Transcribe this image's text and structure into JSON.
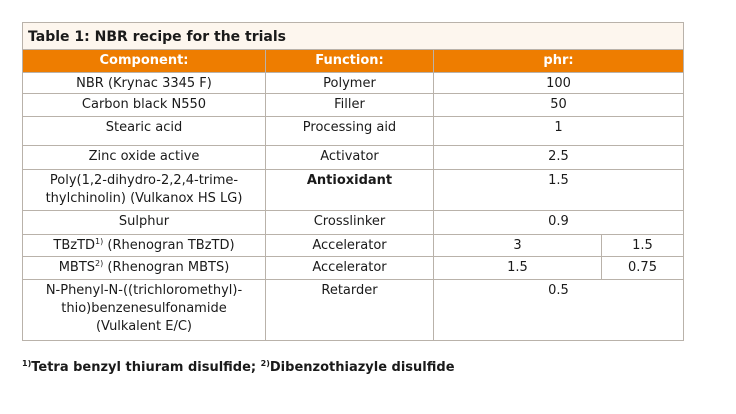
{
  "table": {
    "title": "Table 1: NBR recipe for the trials",
    "headers": [
      "Component:",
      "Function:",
      "phr:"
    ],
    "rows": [
      {
        "component": [
          "NBR (Krynac 3345 F)"
        ],
        "function": "Polymer",
        "phr": [
          100
        ]
      },
      {
        "component": [
          "Carbon black N550"
        ],
        "function": "Filler",
        "phr": [
          50
        ]
      },
      {
        "component": [
          "Stearic acid"
        ],
        "function": "Processing aid",
        "phr": [
          1
        ]
      },
      {
        "component": [
          "Zinc oxide active"
        ],
        "function": "Activator",
        "phr": [
          2.5
        ]
      },
      {
        "component": [
          "Poly(1,2-dihydro-2,2,4-trime-",
          "thylchinolin) (Vulkanox HS LG)"
        ],
        "function": "Antioxidant",
        "function_bold": true,
        "phr": [
          1.5
        ]
      },
      {
        "component": [
          "Sulphur"
        ],
        "function": "Crosslinker",
        "phr": [
          0.9
        ]
      },
      {
        "component": [
          "TBzTD"
        ],
        "component_sup": "1)",
        "component_suffix": " (Rhenogran TBzTD)",
        "function": "Accelerator",
        "phr": [
          3,
          1.5
        ]
      },
      {
        "component": [
          "MBTS"
        ],
        "component_sup": "2)",
        "component_suffix": " (Rhenogran MBTS)",
        "function": "Accelerator",
        "phr": [
          1.5,
          0.75
        ]
      },
      {
        "component": [
          "N-Phenyl-N-((trichloromethyl)-",
          "thio)benzenesulfonamide",
          "(Vulkalent E/C)"
        ],
        "function": "Retarder",
        "phr": [
          0.5
        ]
      }
    ]
  },
  "footnote": [
    {
      "sup": "1)",
      "text": "Tetra benzyl thiuram disulfide; "
    },
    {
      "sup": "2)",
      "text": "Dibenzothiazyle disulfide"
    }
  ]
}
